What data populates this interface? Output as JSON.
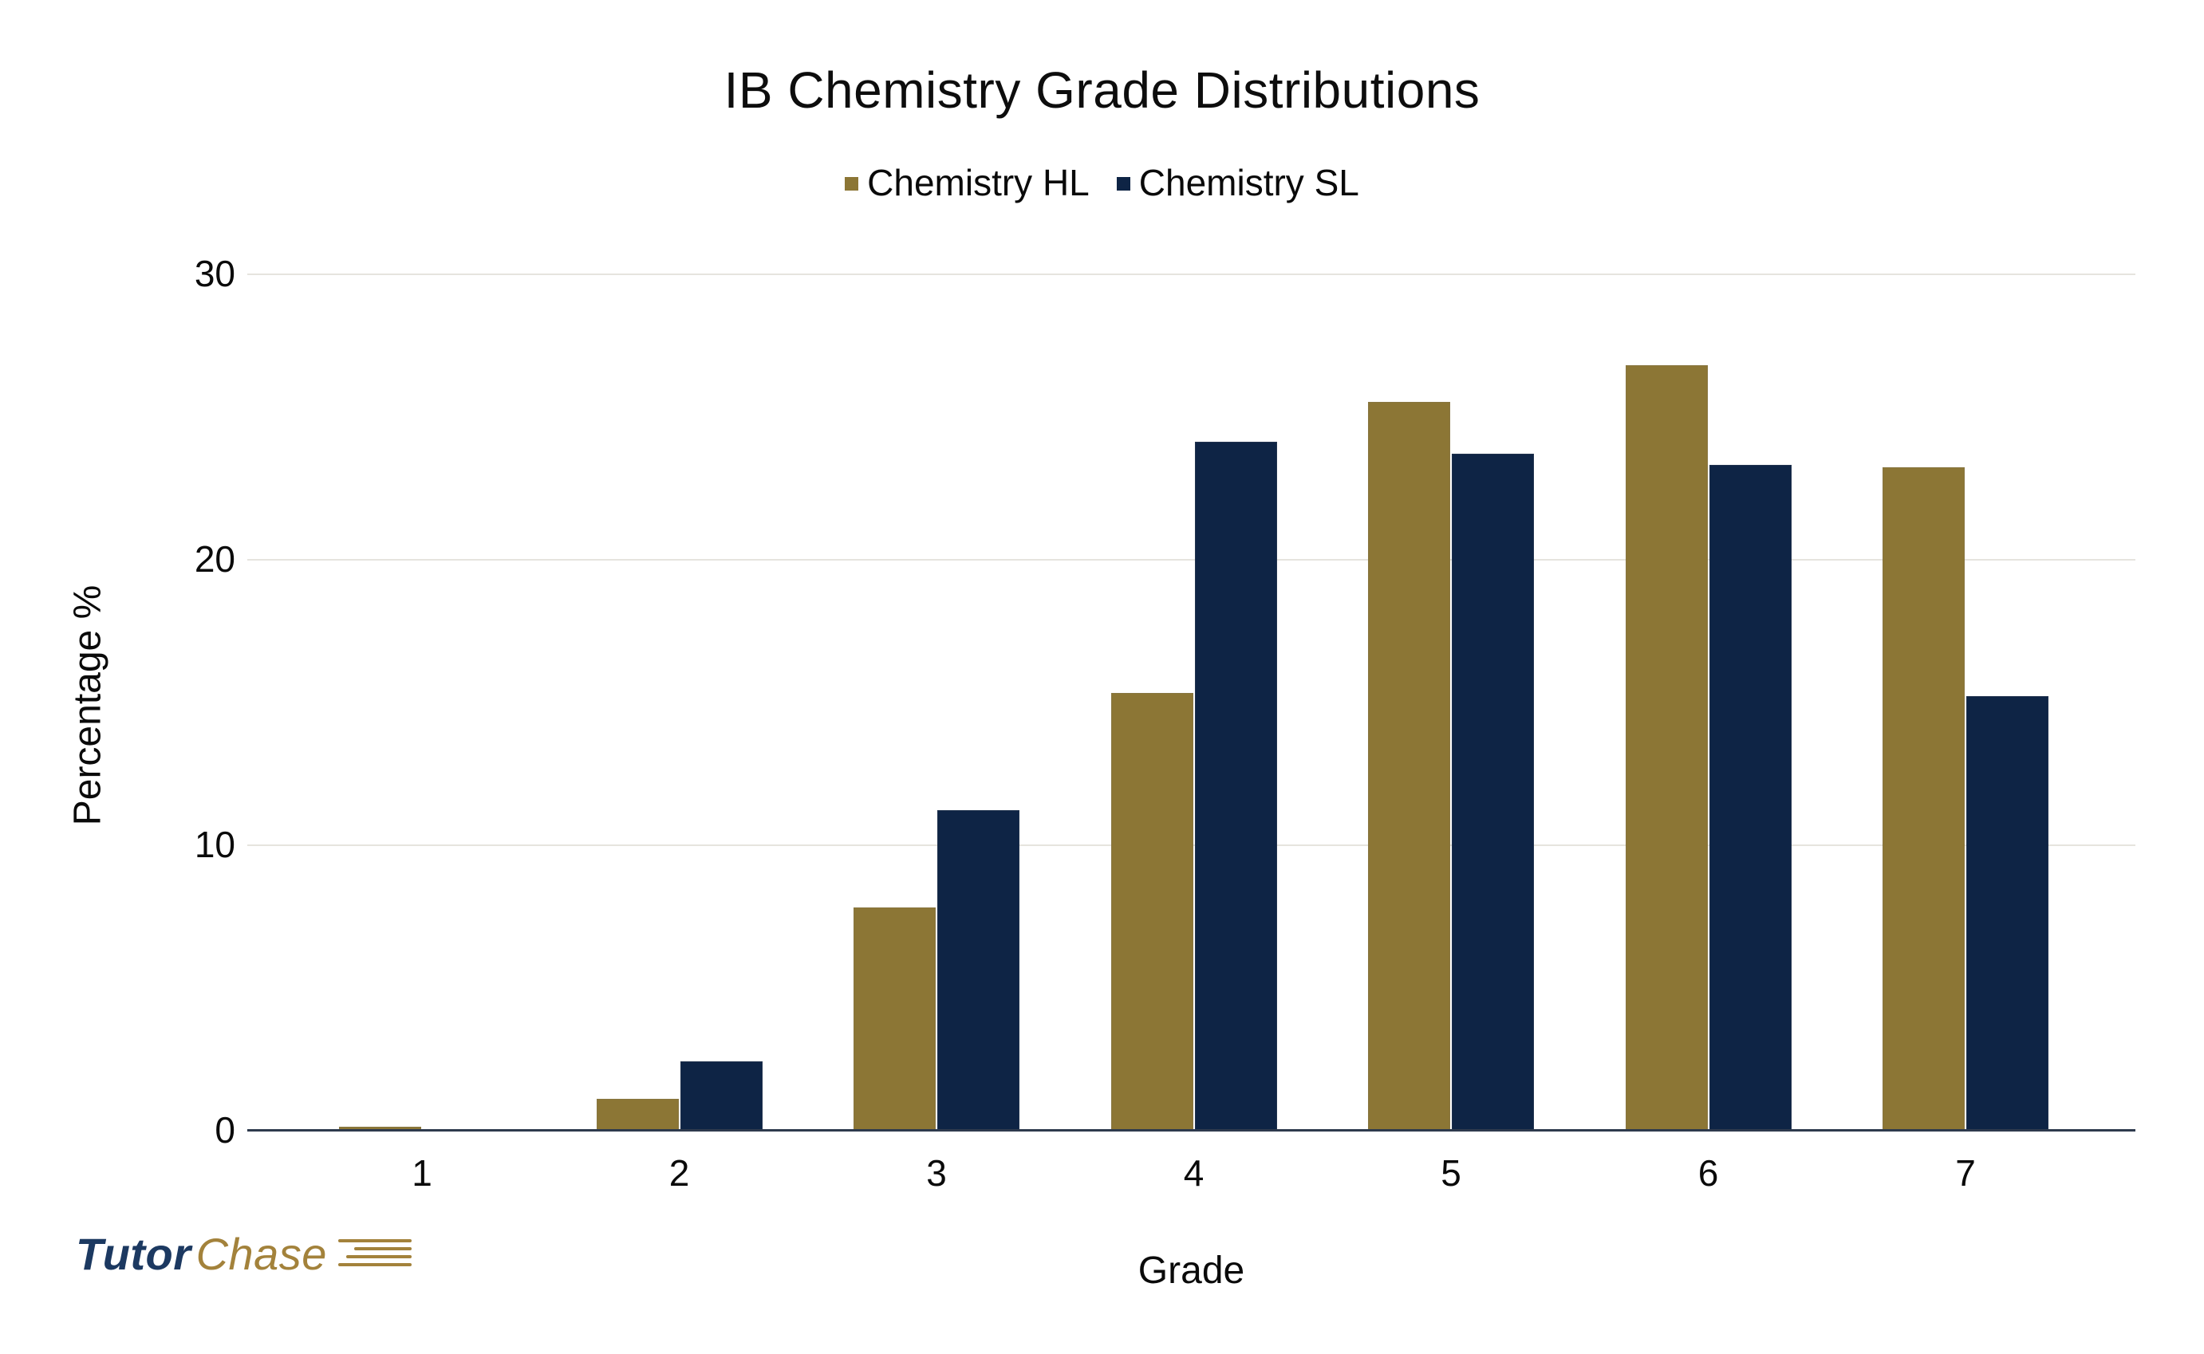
{
  "header": {
    "title": "IB Chemistry Grade Distributions"
  },
  "chart_data": {
    "type": "bar",
    "title": "IB Chemistry Grade Distributions",
    "categories": [
      "1",
      "2",
      "3",
      "4",
      "5",
      "6",
      "7"
    ],
    "series": [
      {
        "name": "Chemistry HL",
        "color": "#8C7635",
        "values": [
          0.1,
          1.1,
          7.8,
          15.3,
          25.5,
          26.8,
          23.2
        ]
      },
      {
        "name": "Chemistry SL",
        "color": "#0E2445",
        "values": [
          0.0,
          2.4,
          11.2,
          24.1,
          23.7,
          23.3,
          15.2
        ]
      }
    ],
    "xlabel": "Grade",
    "ylabel": "Percentage %",
    "ylim": [
      0,
      30
    ],
    "yticks": [
      0,
      10,
      20,
      30
    ],
    "grid": true,
    "legend_position": "top",
    "gridline_color": "#E6E4DE",
    "axis_line_color": "#2E3A4D"
  },
  "logo": {
    "part1": "Tutor",
    "part2": "Chase",
    "part1_color": "#1C3961",
    "part2_color": "#A3823B",
    "speedline_color": "#A3823B"
  }
}
